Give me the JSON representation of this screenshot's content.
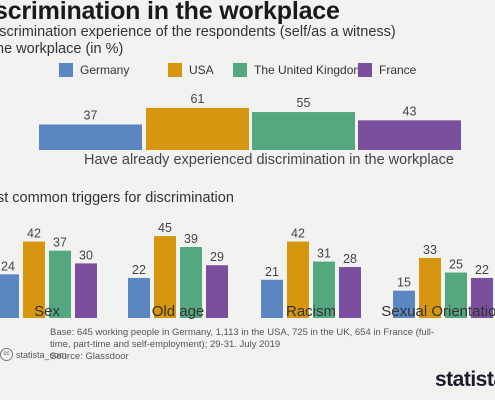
{
  "title": "scrimination in the workplace",
  "subtitle_line1": "iscrimination experience of the respondents (self/as a witness)",
  "subtitle_line2": "he workplace (in %)",
  "colors": {
    "Germany": "#5b86c2",
    "USA": "#d6960f",
    "The United Kingdom": "#53a880",
    "France": "#7a4f9e"
  },
  "chart_data": [
    {
      "type": "bar",
      "title": "",
      "categories": [
        "Have already experienced discrimination in the workplace"
      ],
      "series": [
        {
          "name": "Germany",
          "values": [
            37
          ]
        },
        {
          "name": "USA",
          "values": [
            61
          ]
        },
        {
          "name": "The United Kingdom",
          "values": [
            55
          ]
        },
        {
          "name": "France",
          "values": [
            43
          ]
        }
      ],
      "ylim": [
        0,
        100
      ],
      "legend": "top"
    },
    {
      "type": "bar",
      "title": "st common triggers for discrimination",
      "categories": [
        "Sex",
        "Old age",
        "Racism",
        "Sexual Orientation"
      ],
      "series": [
        {
          "name": "Germany",
          "values": [
            24,
            22,
            21,
            15
          ]
        },
        {
          "name": "USA",
          "values": [
            42,
            45,
            42,
            33
          ]
        },
        {
          "name": "The United Kingdom",
          "values": [
            37,
            39,
            31,
            25
          ]
        },
        {
          "name": "France",
          "values": [
            30,
            29,
            28,
            22
          ]
        }
      ],
      "ylim": [
        0,
        100
      ]
    }
  ],
  "footnote": "Base: 645 working people in Germany, 1,113 in the USA, 725 in the UK, 654 in France (full-time, part-time and self-employment); 29-31. July 2019",
  "source": "Source: Glassdoor",
  "credit": "statista_com",
  "brand": "statista"
}
